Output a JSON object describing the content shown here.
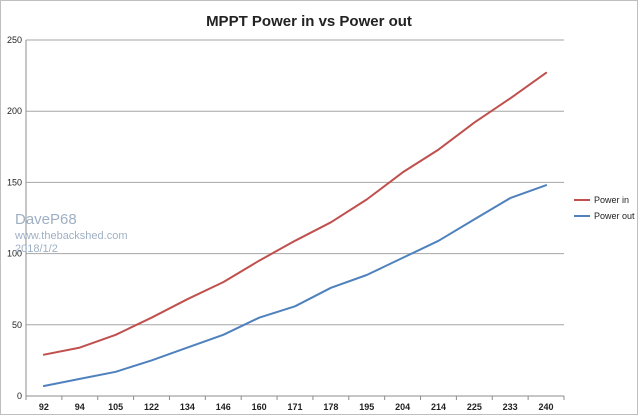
{
  "chart_data": {
    "type": "line",
    "title": "MPPT Power in vs Power out",
    "xlabel": "",
    "ylabel": "",
    "categories": [
      "92",
      "94",
      "105",
      "122",
      "134",
      "146",
      "160",
      "171",
      "178",
      "195",
      "204",
      "214",
      "225",
      "233",
      "240"
    ],
    "ylim": [
      0,
      250
    ],
    "yticks": [
      0,
      50,
      100,
      150,
      200,
      250
    ],
    "grid": true,
    "legend_position": "right",
    "series": [
      {
        "name": "Power in",
        "color": "#c0504d",
        "values": [
          29,
          34,
          43,
          55,
          68,
          80,
          95,
          109,
          122,
          138,
          157,
          173,
          192,
          209,
          227
        ]
      },
      {
        "name": "Power out",
        "color": "#4f81bd",
        "values": [
          7,
          12,
          17,
          25,
          34,
          43,
          55,
          63,
          76,
          85,
          97,
          109,
          124,
          139,
          148
        ]
      }
    ]
  },
  "watermark": {
    "author": "DaveP68",
    "site": "www.thebackshed.com",
    "date": "2018/1/2"
  }
}
